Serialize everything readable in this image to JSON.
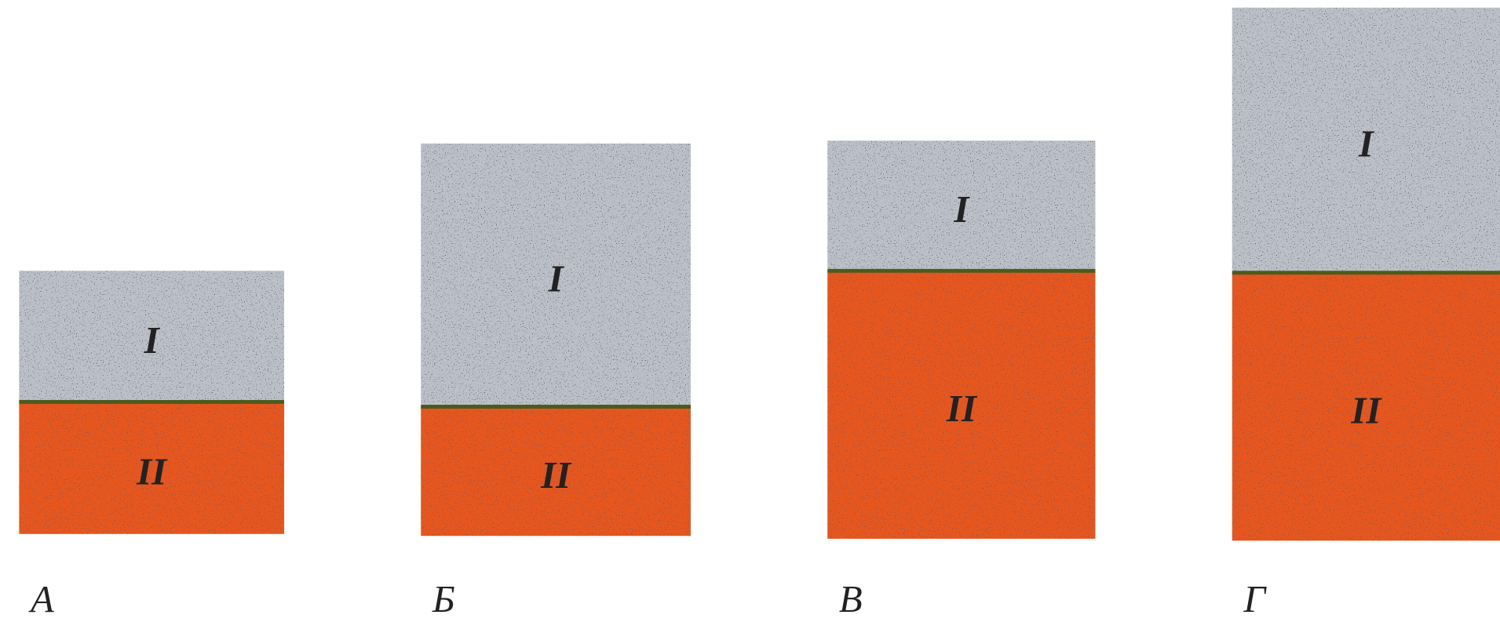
{
  "panels": [
    {
      "label": "А",
      "layers": [
        {
          "label": "I"
        },
        {
          "label": "II"
        }
      ]
    },
    {
      "label": "Б",
      "layers": [
        {
          "label": "I"
        },
        {
          "label": "II"
        }
      ]
    },
    {
      "label": "В",
      "layers": [
        {
          "label": "I"
        },
        {
          "label": "II"
        }
      ]
    },
    {
      "label": "Г",
      "layers": [
        {
          "label": "I"
        },
        {
          "label": "II"
        }
      ]
    }
  ]
}
